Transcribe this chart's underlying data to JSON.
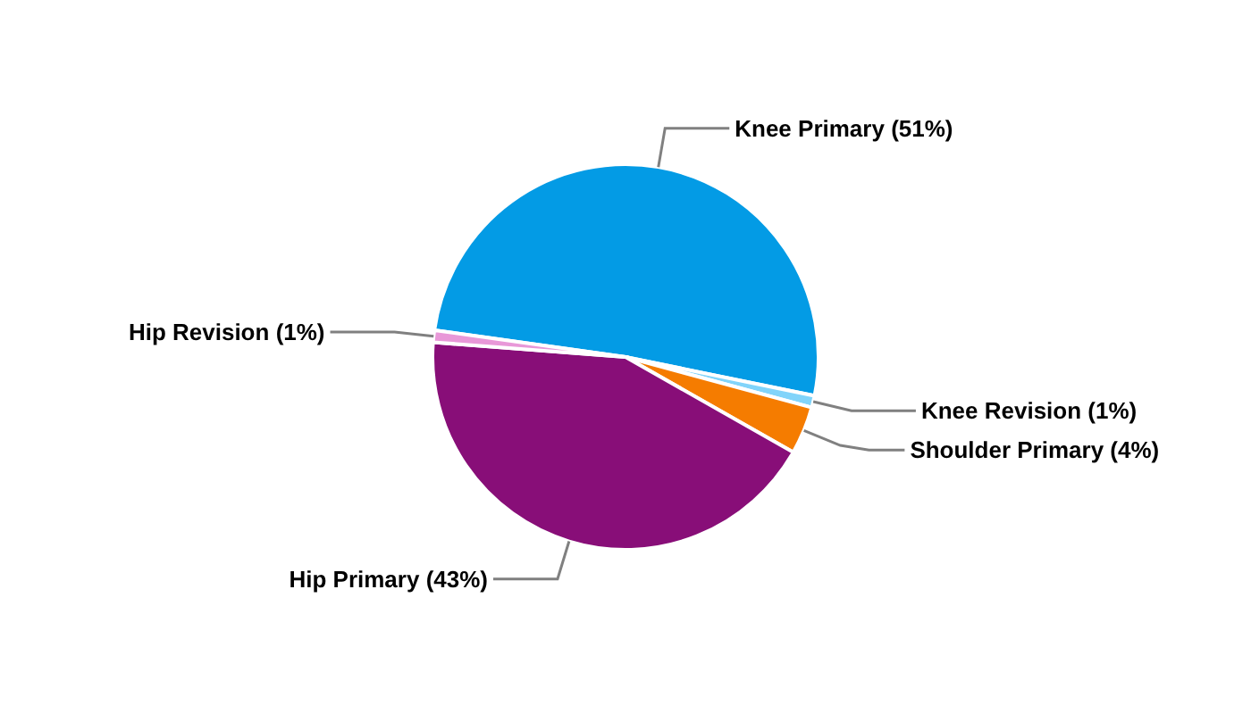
{
  "chart_data": {
    "type": "pie",
    "categories": [
      "Knee Primary",
      "Knee Revision",
      "Shoulder Primary",
      "Hip Primary",
      "Hip Revision"
    ],
    "values": [
      51,
      1,
      4,
      43,
      1
    ],
    "colors": [
      "#039be5",
      "#81d4fa",
      "#f57c00",
      "#880e78",
      "#e898d8"
    ],
    "value_labels": [
      "(51%)",
      "(1%)",
      "(4%)",
      "(43%)",
      "(1%)"
    ],
    "legend": false
  }
}
